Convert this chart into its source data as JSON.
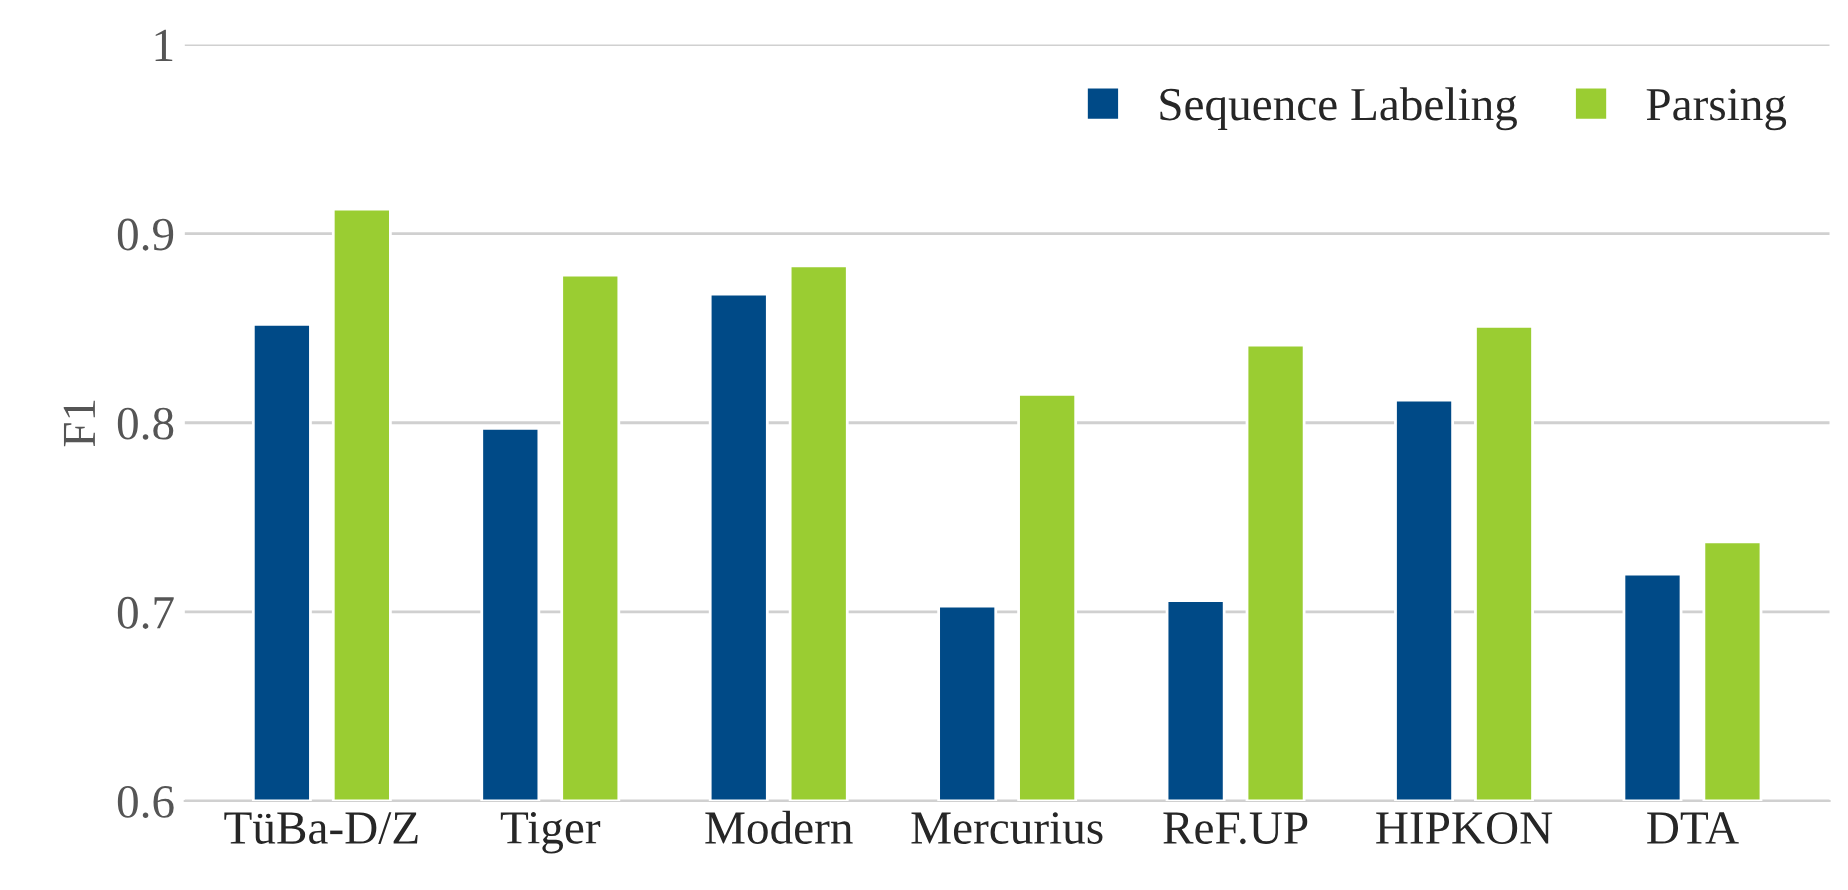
{
  "chart_data": {
    "type": "bar",
    "ylabel": "F1",
    "categories": [
      "TüBa-D/Z",
      "Tiger",
      "Modern",
      "Mercurius",
      "ReF.UP",
      "HIPKON",
      "DTA"
    ],
    "series": [
      {
        "name": "Sequence Labeling",
        "color": "#004a87",
        "values": [
          0.852,
          0.797,
          0.868,
          0.703,
          0.706,
          0.812,
          0.72
        ]
      },
      {
        "name": "Parsing",
        "color": "#9acd32",
        "values": [
          0.913,
          0.878,
          0.883,
          0.815,
          0.841,
          0.851,
          0.737
        ]
      }
    ],
    "ylim": [
      0.6,
      1
    ],
    "yticks": [
      0.6,
      0.7,
      0.8,
      0.9,
      1
    ],
    "grid": "y",
    "legend": "top right"
  }
}
